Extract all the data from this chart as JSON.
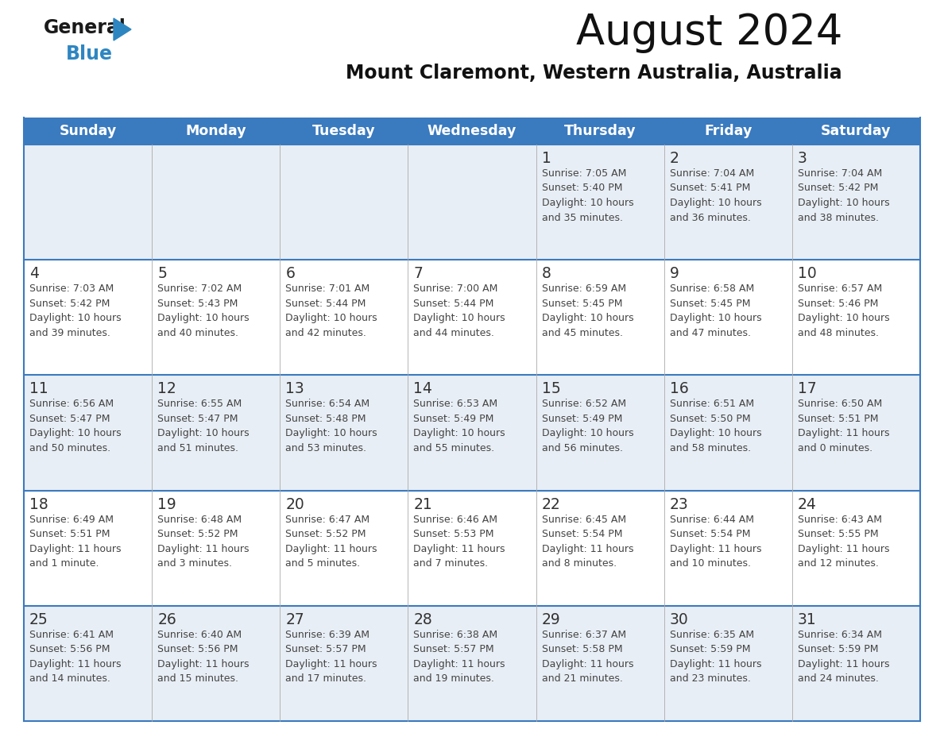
{
  "title": "August 2024",
  "subtitle": "Mount Claremont, Western Australia, Australia",
  "header_bg": "#3a7abf",
  "header_text": "#ffffff",
  "weekdays": [
    "Sunday",
    "Monday",
    "Tuesday",
    "Wednesday",
    "Thursday",
    "Friday",
    "Saturday"
  ],
  "row_bg_even": "#e8eef5",
  "row_bg_odd": "#ffffff",
  "day_number_color": "#333333",
  "info_color": "#444444",
  "border_color": "#3a7abf",
  "calendar_data": [
    [
      {
        "day": "",
        "sunrise": "",
        "sunset": "",
        "daylight": ""
      },
      {
        "day": "",
        "sunrise": "",
        "sunset": "",
        "daylight": ""
      },
      {
        "day": "",
        "sunrise": "",
        "sunset": "",
        "daylight": ""
      },
      {
        "day": "",
        "sunrise": "",
        "sunset": "",
        "daylight": ""
      },
      {
        "day": "1",
        "sunrise": "7:05 AM",
        "sunset": "5:40 PM",
        "daylight": "10 hours\nand 35 minutes."
      },
      {
        "day": "2",
        "sunrise": "7:04 AM",
        "sunset": "5:41 PM",
        "daylight": "10 hours\nand 36 minutes."
      },
      {
        "day": "3",
        "sunrise": "7:04 AM",
        "sunset": "5:42 PM",
        "daylight": "10 hours\nand 38 minutes."
      }
    ],
    [
      {
        "day": "4",
        "sunrise": "7:03 AM",
        "sunset": "5:42 PM",
        "daylight": "10 hours\nand 39 minutes."
      },
      {
        "day": "5",
        "sunrise": "7:02 AM",
        "sunset": "5:43 PM",
        "daylight": "10 hours\nand 40 minutes."
      },
      {
        "day": "6",
        "sunrise": "7:01 AM",
        "sunset": "5:44 PM",
        "daylight": "10 hours\nand 42 minutes."
      },
      {
        "day": "7",
        "sunrise": "7:00 AM",
        "sunset": "5:44 PM",
        "daylight": "10 hours\nand 44 minutes."
      },
      {
        "day": "8",
        "sunrise": "6:59 AM",
        "sunset": "5:45 PM",
        "daylight": "10 hours\nand 45 minutes."
      },
      {
        "day": "9",
        "sunrise": "6:58 AM",
        "sunset": "5:45 PM",
        "daylight": "10 hours\nand 47 minutes."
      },
      {
        "day": "10",
        "sunrise": "6:57 AM",
        "sunset": "5:46 PM",
        "daylight": "10 hours\nand 48 minutes."
      }
    ],
    [
      {
        "day": "11",
        "sunrise": "6:56 AM",
        "sunset": "5:47 PM",
        "daylight": "10 hours\nand 50 minutes."
      },
      {
        "day": "12",
        "sunrise": "6:55 AM",
        "sunset": "5:47 PM",
        "daylight": "10 hours\nand 51 minutes."
      },
      {
        "day": "13",
        "sunrise": "6:54 AM",
        "sunset": "5:48 PM",
        "daylight": "10 hours\nand 53 minutes."
      },
      {
        "day": "14",
        "sunrise": "6:53 AM",
        "sunset": "5:49 PM",
        "daylight": "10 hours\nand 55 minutes."
      },
      {
        "day": "15",
        "sunrise": "6:52 AM",
        "sunset": "5:49 PM",
        "daylight": "10 hours\nand 56 minutes."
      },
      {
        "day": "16",
        "sunrise": "6:51 AM",
        "sunset": "5:50 PM",
        "daylight": "10 hours\nand 58 minutes."
      },
      {
        "day": "17",
        "sunrise": "6:50 AM",
        "sunset": "5:51 PM",
        "daylight": "11 hours\nand 0 minutes."
      }
    ],
    [
      {
        "day": "18",
        "sunrise": "6:49 AM",
        "sunset": "5:51 PM",
        "daylight": "11 hours\nand 1 minute."
      },
      {
        "day": "19",
        "sunrise": "6:48 AM",
        "sunset": "5:52 PM",
        "daylight": "11 hours\nand 3 minutes."
      },
      {
        "day": "20",
        "sunrise": "6:47 AM",
        "sunset": "5:52 PM",
        "daylight": "11 hours\nand 5 minutes."
      },
      {
        "day": "21",
        "sunrise": "6:46 AM",
        "sunset": "5:53 PM",
        "daylight": "11 hours\nand 7 minutes."
      },
      {
        "day": "22",
        "sunrise": "6:45 AM",
        "sunset": "5:54 PM",
        "daylight": "11 hours\nand 8 minutes."
      },
      {
        "day": "23",
        "sunrise": "6:44 AM",
        "sunset": "5:54 PM",
        "daylight": "11 hours\nand 10 minutes."
      },
      {
        "day": "24",
        "sunrise": "6:43 AM",
        "sunset": "5:55 PM",
        "daylight": "11 hours\nand 12 minutes."
      }
    ],
    [
      {
        "day": "25",
        "sunrise": "6:41 AM",
        "sunset": "5:56 PM",
        "daylight": "11 hours\nand 14 minutes."
      },
      {
        "day": "26",
        "sunrise": "6:40 AM",
        "sunset": "5:56 PM",
        "daylight": "11 hours\nand 15 minutes."
      },
      {
        "day": "27",
        "sunrise": "6:39 AM",
        "sunset": "5:57 PM",
        "daylight": "11 hours\nand 17 minutes."
      },
      {
        "day": "28",
        "sunrise": "6:38 AM",
        "sunset": "5:57 PM",
        "daylight": "11 hours\nand 19 minutes."
      },
      {
        "day": "29",
        "sunrise": "6:37 AM",
        "sunset": "5:58 PM",
        "daylight": "11 hours\nand 21 minutes."
      },
      {
        "day": "30",
        "sunrise": "6:35 AM",
        "sunset": "5:59 PM",
        "daylight": "11 hours\nand 23 minutes."
      },
      {
        "day": "31",
        "sunrise": "6:34 AM",
        "sunset": "5:59 PM",
        "daylight": "11 hours\nand 24 minutes."
      }
    ]
  ]
}
